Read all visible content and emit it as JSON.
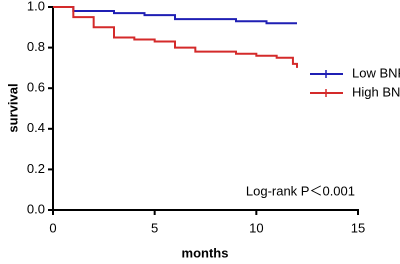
{
  "chart_data": {
    "type": "line",
    "drawstyle": "steps-post",
    "xlabel": "months",
    "ylabel": "survival",
    "xlim": [
      0,
      15
    ],
    "xticks": [
      0,
      5,
      10,
      15
    ],
    "ylim": [
      0,
      1
    ],
    "yticks": [
      {
        "value": 0,
        "label": "0.0"
      },
      {
        "value": 0.2,
        "label": "0.2"
      },
      {
        "value": 0.4,
        "label": "0.4"
      },
      {
        "value": 0.6,
        "label": "0.6"
      },
      {
        "value": 0.8,
        "label": "0.8"
      },
      {
        "value": 1,
        "label": "1.0"
      }
    ],
    "grid": false,
    "legend": "right",
    "annotation": "Log-rank P＜0.001",
    "series": [
      {
        "name": "Low BNP",
        "color": "#1f1fb4",
        "x": [
          0,
          1,
          3,
          4.5,
          6,
          9,
          10.5,
          12
        ],
        "values": [
          1,
          0.98,
          0.97,
          0.96,
          0.94,
          0.93,
          0.92,
          0.92
        ]
      },
      {
        "name": "High BNP",
        "color": "#d42a2a",
        "x": [
          0,
          1,
          2,
          3,
          4,
          5,
          6,
          7,
          9,
          10,
          11,
          11.8,
          12
        ],
        "values": [
          1,
          0.95,
          0.9,
          0.85,
          0.84,
          0.83,
          0.8,
          0.78,
          0.77,
          0.76,
          0.75,
          0.72,
          0.7
        ]
      }
    ]
  }
}
